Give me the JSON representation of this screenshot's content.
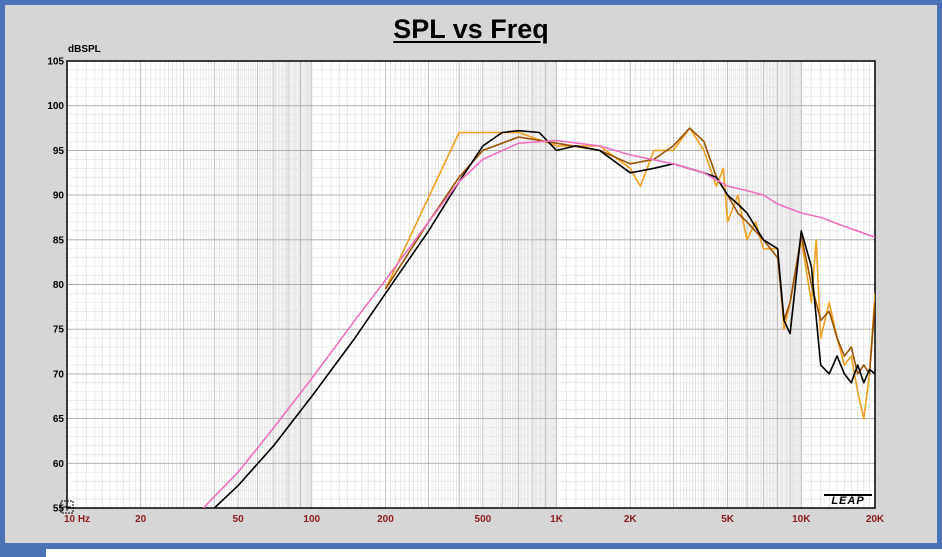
{
  "chart_data": {
    "type": "line",
    "title": "SPL vs Freq",
    "ylabel": "dBSPL",
    "xlabel": "",
    "x_scale": "log",
    "xlim": [
      10,
      20000
    ],
    "ylim": [
      55,
      105
    ],
    "grid": true,
    "x_tick_labels": [
      {
        "value": 10,
        "label": "10 Hz"
      },
      {
        "value": 20,
        "label": "20"
      },
      {
        "value": 50,
        "label": "50"
      },
      {
        "value": 100,
        "label": "100"
      },
      {
        "value": 200,
        "label": "200"
      },
      {
        "value": 500,
        "label": "500"
      },
      {
        "value": 1000,
        "label": "1K"
      },
      {
        "value": 2000,
        "label": "2K"
      },
      {
        "value": 5000,
        "label": "5K"
      },
      {
        "value": 10000,
        "label": "10K"
      },
      {
        "value": 20000,
        "label": "20K"
      }
    ],
    "y_ticks": [
      55,
      60,
      65,
      70,
      75,
      80,
      85,
      90,
      95,
      100,
      105
    ],
    "series": [
      {
        "color": "#f0a020",
        "points": [
          [
            200,
            79.5
          ],
          [
            400,
            97
          ],
          [
            700,
            97
          ],
          [
            1000,
            95.5
          ],
          [
            1500,
            95.5
          ],
          [
            2000,
            93
          ],
          [
            2200,
            91
          ],
          [
            2500,
            95
          ],
          [
            3000,
            95
          ],
          [
            3500,
            97.5
          ],
          [
            4000,
            95
          ],
          [
            4500,
            91
          ],
          [
            4800,
            93
          ],
          [
            5000,
            87
          ],
          [
            5500,
            90
          ],
          [
            6000,
            85
          ],
          [
            6500,
            87
          ],
          [
            7000,
            84
          ],
          [
            8000,
            84
          ],
          [
            8500,
            75
          ],
          [
            9000,
            78
          ],
          [
            10000,
            85
          ],
          [
            11000,
            78
          ],
          [
            11500,
            85
          ],
          [
            12000,
            74
          ],
          [
            13000,
            78
          ],
          [
            14000,
            74
          ],
          [
            15000,
            71
          ],
          [
            16000,
            72
          ],
          [
            17000,
            68
          ],
          [
            18000,
            65
          ],
          [
            19000,
            70
          ],
          [
            20000,
            79
          ]
        ]
      },
      {
        "color": "#9a5200",
        "points": [
          [
            200,
            79.5
          ],
          [
            300,
            87
          ],
          [
            400,
            92
          ],
          [
            500,
            95
          ],
          [
            700,
            96.5
          ],
          [
            1000,
            95.8
          ],
          [
            1500,
            95
          ],
          [
            2000,
            93.5
          ],
          [
            2500,
            94
          ],
          [
            3000,
            95.5
          ],
          [
            3500,
            97.5
          ],
          [
            4000,
            96
          ],
          [
            4500,
            92
          ],
          [
            5000,
            90
          ],
          [
            5500,
            88
          ],
          [
            6000,
            87
          ],
          [
            7000,
            85
          ],
          [
            8000,
            83
          ],
          [
            8500,
            76
          ],
          [
            9000,
            78
          ],
          [
            10000,
            85.5
          ],
          [
            11000,
            80
          ],
          [
            12000,
            76
          ],
          [
            13000,
            77
          ],
          [
            14000,
            74
          ],
          [
            15000,
            72
          ],
          [
            16000,
            73
          ],
          [
            17000,
            70
          ],
          [
            18000,
            71
          ],
          [
            19000,
            70
          ],
          [
            20000,
            78
          ]
        ]
      },
      {
        "color": "#000000",
        "points": [
          [
            40,
            55
          ],
          [
            50,
            57.5
          ],
          [
            70,
            62
          ],
          [
            100,
            67.5
          ],
          [
            150,
            74
          ],
          [
            200,
            79
          ],
          [
            300,
            86
          ],
          [
            400,
            91.5
          ],
          [
            500,
            95.5
          ],
          [
            600,
            97
          ],
          [
            700,
            97.2
          ],
          [
            850,
            97
          ],
          [
            1000,
            95
          ],
          [
            1200,
            95.5
          ],
          [
            1500,
            95
          ],
          [
            2000,
            92.5
          ],
          [
            2500,
            93
          ],
          [
            3000,
            93.5
          ],
          [
            4000,
            92.5
          ],
          [
            4500,
            92
          ],
          [
            5000,
            90
          ],
          [
            5500,
            89
          ],
          [
            6000,
            88
          ],
          [
            7000,
            85
          ],
          [
            8000,
            84
          ],
          [
            8500,
            76
          ],
          [
            9000,
            74.5
          ],
          [
            10000,
            86
          ],
          [
            11000,
            82
          ],
          [
            12000,
            71
          ],
          [
            13000,
            70
          ],
          [
            14000,
            72
          ],
          [
            15000,
            70
          ],
          [
            16000,
            69
          ],
          [
            17000,
            71
          ],
          [
            18000,
            69
          ],
          [
            19000,
            70.5
          ],
          [
            20000,
            70
          ]
        ]
      },
      {
        "color": "#f070c0",
        "points": [
          [
            36,
            55
          ],
          [
            50,
            59
          ],
          [
            70,
            64
          ],
          [
            100,
            69.5
          ],
          [
            150,
            76
          ],
          [
            200,
            80.5
          ],
          [
            300,
            87
          ],
          [
            400,
            91.5
          ],
          [
            500,
            94
          ],
          [
            700,
            95.8
          ],
          [
            1000,
            96.1
          ],
          [
            1500,
            95.5
          ],
          [
            2000,
            94.5
          ],
          [
            3000,
            93.5
          ],
          [
            4000,
            92.5
          ],
          [
            5000,
            91
          ],
          [
            6000,
            90.5
          ],
          [
            7000,
            90
          ],
          [
            8000,
            89
          ],
          [
            10000,
            88
          ],
          [
            12000,
            87.5
          ],
          [
            15000,
            86.5
          ],
          [
            20000,
            85.3
          ]
        ]
      }
    ]
  },
  "logo_text": "LEAP"
}
